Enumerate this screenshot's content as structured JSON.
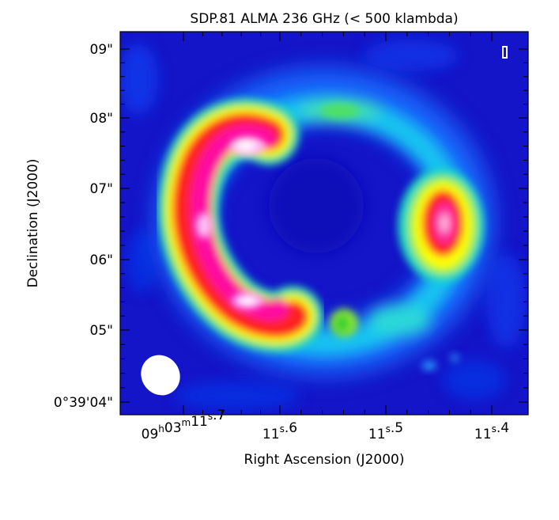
{
  "figure": {
    "title": "SDP.81 ALMA 236 GHz (< 500 klambda)",
    "x_axis_label": "Right Ascension (J2000)",
    "y_axis_label": "Declination (J2000)",
    "colormap": [
      "#1010d0",
      "#0050ff",
      "#00d2ff",
      "#20d020",
      "#ffff00",
      "#ff1a1a",
      "#ff00a0",
      "#ffffff"
    ],
    "background_color": "#1414c8",
    "ra_ticks": [
      {
        "parts": [
          {
            "t": "09"
          },
          {
            "t": "h",
            "sup": true
          },
          {
            "t": "03"
          },
          {
            "t": "m",
            "sup": true
          },
          {
            "t": "11"
          },
          {
            "t": "s",
            "sup": true
          },
          {
            "t": ".7"
          }
        ]
      },
      {
        "parts": [
          {
            "t": "11"
          },
          {
            "t": "s",
            "sup": true
          },
          {
            "t": ".6"
          }
        ]
      },
      {
        "parts": [
          {
            "t": "11"
          },
          {
            "t": "s",
            "sup": true
          },
          {
            "t": ".5"
          }
        ]
      },
      {
        "parts": [
          {
            "t": "11"
          },
          {
            "t": "s",
            "sup": true
          },
          {
            "t": ".4"
          }
        ]
      }
    ],
    "dec_ticks": [
      "0°39'04\"",
      "05\"",
      "06\"",
      "07\"",
      "08\"",
      "09\""
    ],
    "beam_label": "beam",
    "scale_bar_label": "scale-bar"
  }
}
